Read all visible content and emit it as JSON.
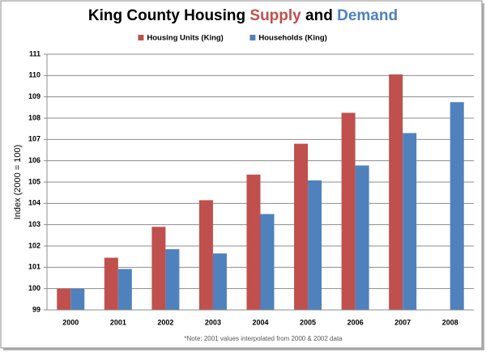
{
  "chart_data": {
    "type": "bar",
    "title": [
      {
        "text": "King County Housing ",
        "color": "#000000"
      },
      {
        "text": "Supply",
        "color": "#c0504d"
      },
      {
        "text": " and ",
        "color": "#000000"
      },
      {
        "text": "Demand",
        "color": "#4f81bd"
      }
    ],
    "y_label": "Index (2000 = 100)",
    "note": "*Note: 2001 values interpolated from 2000 & 2002 data",
    "categories": [
      "2000",
      "2001",
      "2002",
      "2003",
      "2004",
      "2005",
      "2006",
      "2007",
      "2008"
    ],
    "series": [
      {
        "name": "Housing Units (King)",
        "color": "#c0504d",
        "values": [
          100,
          101.45,
          102.9,
          104.15,
          105.35,
          106.8,
          108.25,
          110.05,
          null
        ]
      },
      {
        "name": "Households (King)",
        "color": "#4f81bd",
        "values": [
          100,
          100.92,
          101.85,
          101.65,
          103.5,
          105.08,
          105.78,
          107.3,
          108.75
        ]
      }
    ],
    "ylim": [
      99,
      111
    ],
    "yticks": [
      99,
      100,
      101,
      102,
      103,
      104,
      105,
      106,
      107,
      108,
      109,
      110,
      111
    ],
    "grid": true
  }
}
